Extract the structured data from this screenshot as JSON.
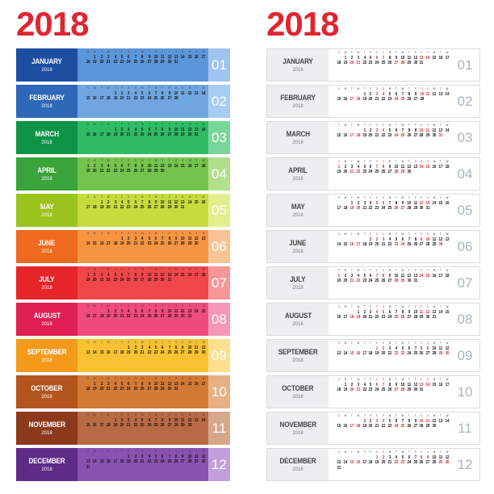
{
  "year": "2018",
  "dow": [
    "S",
    "M",
    "T",
    "W",
    "T",
    "F",
    "S"
  ],
  "months": [
    {
      "name": "JANUARY",
      "num": "01",
      "offset": 1,
      "days": 31,
      "c1": "#1c4fa0",
      "c2": "#5d96d8",
      "c3": "#9fc4ef"
    },
    {
      "name": "FEBRUARY",
      "num": "02",
      "offset": 4,
      "days": 28,
      "c1": "#2d68b9",
      "c2": "#70a6e0",
      "c3": "#a8cdf2"
    },
    {
      "name": "MARCH",
      "num": "03",
      "offset": 4,
      "days": 31,
      "c1": "#0e9447",
      "c2": "#2fbb66",
      "c3": "#79d69a"
    },
    {
      "name": "APRIL",
      "num": "04",
      "offset": 0,
      "days": 30,
      "c1": "#3aa33a",
      "c2": "#74c34d",
      "c3": "#b2df8c"
    },
    {
      "name": "MAY",
      "num": "05",
      "offset": 2,
      "days": 31,
      "c1": "#9bc31e",
      "c2": "#c5dd3c",
      "c3": "#e1ef8c"
    },
    {
      "name": "JUNE",
      "num": "06",
      "offset": 5,
      "days": 30,
      "c1": "#ef6a1e",
      "c2": "#f59542",
      "c3": "#f9c394"
    },
    {
      "name": "JULY",
      "num": "07",
      "offset": 0,
      "days": 31,
      "c1": "#e52528",
      "c2": "#f0474a",
      "c3": "#f69698"
    },
    {
      "name": "AUGUST",
      "num": "08",
      "offset": 3,
      "days": 31,
      "c1": "#e01f52",
      "c2": "#ef4b7d",
      "c3": "#f598b6"
    },
    {
      "name": "SEPTEMBER",
      "num": "09",
      "offset": 6,
      "days": 30,
      "c1": "#f39a1a",
      "c2": "#f8c233",
      "c3": "#fbe08d"
    },
    {
      "name": "OCTOBER",
      "num": "10",
      "offset": 1,
      "days": 31,
      "c1": "#b3551d",
      "c2": "#d37a35",
      "c3": "#e6b084"
    },
    {
      "name": "NOVEMBER",
      "num": "11",
      "offset": 4,
      "days": 30,
      "c1": "#8c3a1b",
      "c2": "#b86a44",
      "c3": "#d7a78c"
    },
    {
      "name": "DECEMBER",
      "num": "12",
      "offset": 6,
      "days": 31,
      "c1": "#5e2c86",
      "c2": "#8a52b0",
      "c3": "#c0a0d8"
    }
  ]
}
